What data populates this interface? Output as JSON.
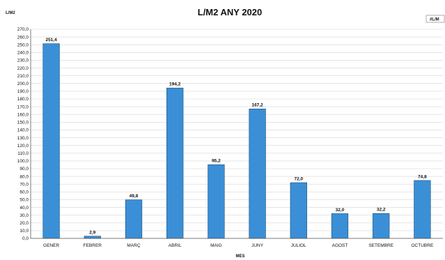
{
  "chart_data": {
    "type": "bar",
    "title": "L/M2 ANY 2020",
    "ylabel": "L/M2",
    "xlabel": "MES",
    "legend": {
      "label": "#L/M",
      "placement": "top-right"
    },
    "ylim": [
      0,
      270
    ],
    "ytick_step": 10,
    "grid": true,
    "bar_color": "#3a8fd6",
    "categories": [
      "GENER",
      "FEBRER",
      "MARÇ",
      "ABRIL",
      "MAIG",
      "JUNY",
      "JULIOL",
      "AGOST",
      "SETEMBRE",
      "OCTUBRE"
    ],
    "values": [
      251.4,
      2.9,
      49.8,
      194.2,
      95.2,
      167.2,
      72.0,
      32.0,
      32.2,
      74.8
    ],
    "value_labels": [
      "251,4",
      "2,9",
      "49,8",
      "194,2",
      "95,2",
      "167,2",
      "72,0",
      "32,0",
      "32,2",
      "74,8"
    ]
  }
}
